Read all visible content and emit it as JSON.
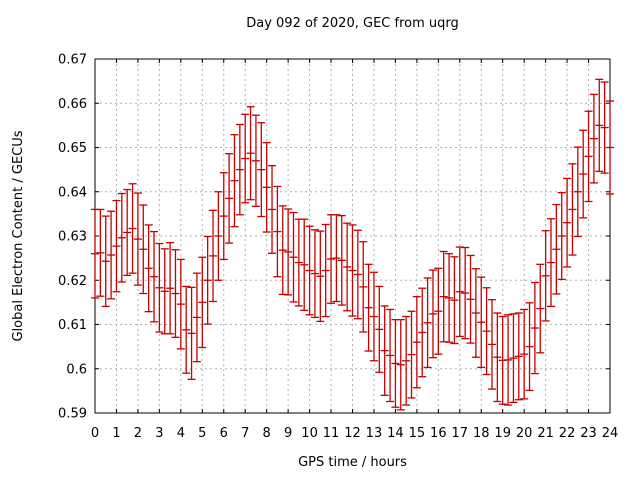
{
  "page": {
    "background": "#ffffff"
  },
  "chart_data": {
    "type": "scatter",
    "style": "yerrorbars",
    "title": "Day 092 of 2020, GEC from uqrg",
    "xlabel": "GPS time / hours",
    "ylabel": "Global Electron Content / GECUs",
    "xlim": [
      0,
      24
    ],
    "ylim": [
      0.59,
      0.67
    ],
    "xticks": [
      0,
      1,
      2,
      3,
      4,
      5,
      6,
      7,
      8,
      9,
      10,
      11,
      12,
      13,
      14,
      15,
      16,
      17,
      18,
      19,
      20,
      21,
      22,
      23,
      24
    ],
    "xtick_labels": [
      "0",
      "1",
      "2",
      "3",
      "4",
      "5",
      "6",
      "7",
      "8",
      "9",
      "10",
      "11",
      "12",
      "13",
      "14",
      "15",
      "16",
      "17",
      "18",
      "19",
      "20",
      "21",
      "22",
      "23",
      "24"
    ],
    "yticks": [
      0.59,
      0.6,
      0.61,
      0.62,
      0.63,
      0.64,
      0.65,
      0.66,
      0.67
    ],
    "ytick_labels": [
      "0.59",
      "0.6",
      "0.61",
      "0.62",
      "0.63",
      "0.64",
      "0.65",
      "0.66",
      "0.67"
    ],
    "grid": true,
    "legend_position": "none",
    "series_color": "#c40000",
    "grid_color": "#b0b0b0",
    "border_color": "#000000",
    "x": [
      0,
      0.25,
      0.5,
      0.75,
      1,
      1.25,
      1.5,
      1.75,
      2,
      2.25,
      2.5,
      2.75,
      3,
      3.25,
      3.5,
      3.75,
      4,
      4.25,
      4.5,
      4.75,
      5,
      5.25,
      5.5,
      5.75,
      6,
      6.25,
      6.5,
      6.75,
      7,
      7.25,
      7.5,
      7.75,
      8,
      8.25,
      8.5,
      8.75,
      9,
      9.25,
      9.5,
      9.75,
      10,
      10.25,
      10.5,
      10.75,
      11,
      11.25,
      11.5,
      11.75,
      12,
      12.25,
      12.5,
      12.75,
      13,
      13.25,
      13.5,
      13.75,
      14,
      14.25,
      14.5,
      14.75,
      15,
      15.25,
      15.5,
      15.75,
      16,
      16.25,
      16.5,
      16.75,
      17,
      17.25,
      17.5,
      17.75,
      18,
      18.25,
      18.5,
      18.75,
      19,
      19.25,
      19.5,
      19.75,
      20,
      20.25,
      20.5,
      20.75,
      21,
      21.25,
      21.5,
      21.75,
      22,
      22.25,
      22.5,
      22.75,
      23,
      23.25,
      23.5,
      23.75,
      24
    ],
    "y": [
      0.626,
      0.6262,
      0.6243,
      0.6257,
      0.6277,
      0.6296,
      0.6308,
      0.6317,
      0.6293,
      0.627,
      0.6227,
      0.6208,
      0.6183,
      0.6175,
      0.6182,
      0.617,
      0.6146,
      0.6088,
      0.608,
      0.6116,
      0.615,
      0.62,
      0.6255,
      0.63,
      0.6345,
      0.6385,
      0.6425,
      0.645,
      0.6475,
      0.6487,
      0.647,
      0.645,
      0.641,
      0.636,
      0.631,
      0.6268,
      0.6264,
      0.6252,
      0.624,
      0.6235,
      0.6222,
      0.6215,
      0.6209,
      0.6222,
      0.6248,
      0.625,
      0.6245,
      0.623,
      0.6222,
      0.6213,
      0.6185,
      0.6138,
      0.6118,
      0.6089,
      0.6041,
      0.603,
      0.6012,
      0.6009,
      0.6018,
      0.6032,
      0.606,
      0.6082,
      0.6104,
      0.6124,
      0.613,
      0.6163,
      0.616,
      0.6155,
      0.6174,
      0.6171,
      0.6157,
      0.6126,
      0.6105,
      0.6085,
      0.6055,
      0.6026,
      0.6019,
      0.602,
      0.6024,
      0.6028,
      0.6033,
      0.605,
      0.6092,
      0.6136,
      0.621,
      0.624,
      0.627,
      0.63,
      0.633,
      0.636,
      0.64,
      0.644,
      0.648,
      0.652,
      0.655,
      0.6545,
      0.65
    ],
    "yerr": [
      0.01,
      0.0098,
      0.0102,
      0.0099,
      0.0103,
      0.01,
      0.0097,
      0.0101,
      0.0104,
      0.01,
      0.0098,
      0.0102,
      0.01,
      0.0096,
      0.0103,
      0.0099,
      0.0101,
      0.0098,
      0.0104,
      0.01,
      0.0102,
      0.0099,
      0.0103,
      0.01,
      0.0098,
      0.0101,
      0.0104,
      0.0102,
      0.01,
      0.0105,
      0.0103,
      0.0106,
      0.0101,
      0.0099,
      0.0102,
      0.01,
      0.0097,
      0.0101,
      0.0098,
      0.0103,
      0.01,
      0.0099,
      0.0102,
      0.0104,
      0.01,
      0.0098,
      0.0101,
      0.0099,
      0.0103,
      0.01,
      0.0102,
      0.0098,
      0.01,
      0.0097,
      0.0101,
      0.0104,
      0.0099,
      0.0102,
      0.01,
      0.0098,
      0.0103,
      0.01,
      0.0101,
      0.0099,
      0.0097,
      0.0102,
      0.01,
      0.0098,
      0.0101,
      0.0103,
      0.0099,
      0.01,
      0.0102,
      0.0098,
      0.0101,
      0.01,
      0.0099,
      0.0102,
      0.01,
      0.0098,
      0.0101,
      0.0099,
      0.0103,
      0.01,
      0.0102,
      0.0099,
      0.0101,
      0.0098,
      0.01,
      0.0103,
      0.0101,
      0.0099,
      0.0102,
      0.01,
      0.0104,
      0.0103,
      0.0105
    ]
  }
}
